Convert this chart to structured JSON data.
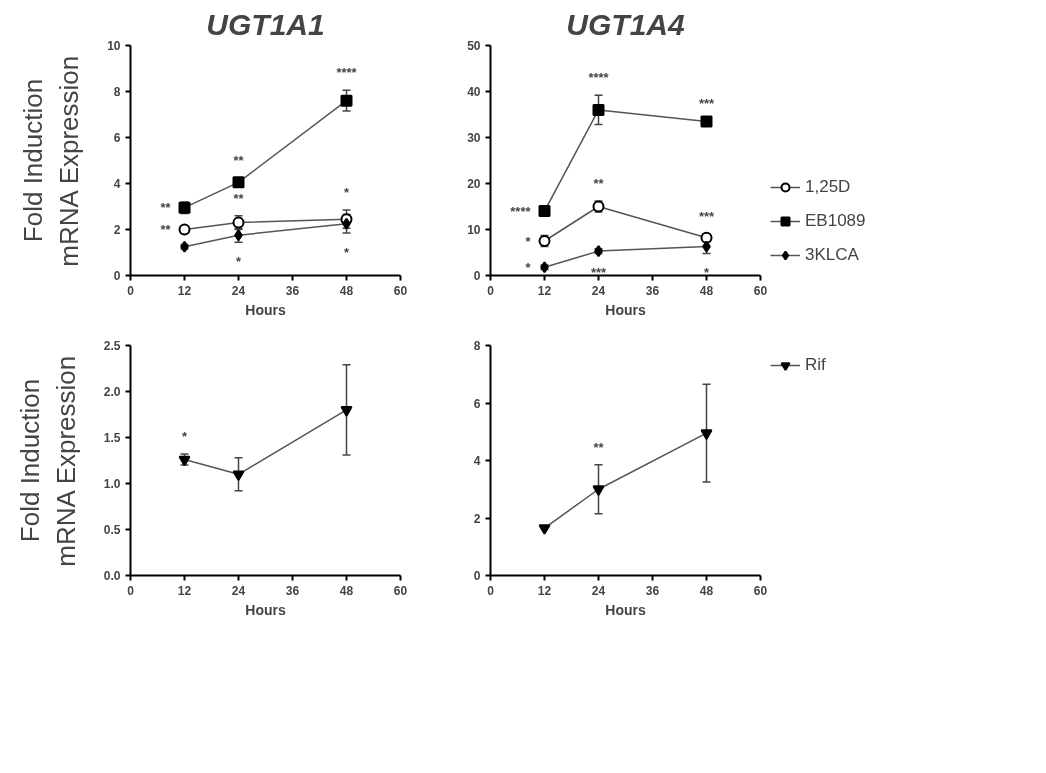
{
  "chart_data": [
    {
      "type": "line",
      "title": "UGT1A1",
      "xlabel": "Hours",
      "ylabel": "Fold Induction\nmRNA Expression",
      "x": [
        12,
        24,
        48
      ],
      "xlim": [
        0,
        60
      ],
      "xticks": [
        0,
        12,
        24,
        36,
        48,
        60
      ],
      "ylim": [
        0,
        10
      ],
      "yticks": [
        0,
        2,
        4,
        6,
        8,
        10
      ],
      "grid": false,
      "legend": false,
      "series": [
        {
          "color": "#000000",
          "marker": "circle",
          "values": [
            2.0,
            2.3,
            2.45
          ],
          "errors": [
            0.15,
            0.3,
            0.4
          ]
        },
        {
          "color": "#000000",
          "marker": "square",
          "values": [
            2.95,
            4.05,
            7.6
          ],
          "errors": [
            0.25,
            0.2,
            0.45
          ]
        },
        {
          "color": "#000000",
          "marker": "diamond",
          "values": [
            1.25,
            1.75,
            2.25
          ],
          "errors": [
            0.1,
            0.3,
            0.4
          ]
        }
      ],
      "annotations": [
        {
          "text": "**",
          "x": 12,
          "y": 2.95
        },
        {
          "text": "**",
          "x": 24,
          "y": 4.05
        },
        {
          "text": "****",
          "x": 48,
          "y": 7.6
        },
        {
          "text": "**",
          "x": 24,
          "y": 2.3
        },
        {
          "text": "*",
          "x": 48,
          "y": 2.45
        },
        {
          "text": "**",
          "x": 12,
          "y": 2.0
        },
        {
          "text": "*",
          "x": 24,
          "y": 1.75
        },
        {
          "text": "*",
          "x": 48,
          "y": 2.25
        }
      ]
    },
    {
      "type": "line",
      "title": "UGT1A4",
      "xlabel": "Hours",
      "x": [
        12,
        24,
        48
      ],
      "xlim": [
        0,
        60
      ],
      "xticks": [
        0,
        12,
        24,
        36,
        48,
        60
      ],
      "ylim": [
        0,
        50
      ],
      "yticks": [
        0,
        10,
        20,
        30,
        40,
        50
      ],
      "grid": false,
      "legend": "right",
      "series": [
        {
          "name": "1,25D",
          "color": "#000000",
          "marker": "circle",
          "values": [
            7.5,
            15,
            8.2
          ],
          "errors": [
            1.2,
            1.2,
            0.8
          ]
        },
        {
          "name": "EB1089",
          "color": "#000000",
          "marker": "square",
          "values": [
            14,
            36,
            33.5
          ],
          "errors": [
            null,
            3.2,
            null
          ]
        },
        {
          "name": "3KLCA",
          "color": "#000000",
          "marker": "diamond",
          "values": [
            1.8,
            5.3,
            6.3
          ],
          "errors": [
            0.5,
            0.5,
            1.5
          ]
        }
      ],
      "annotations": [
        {
          "text": "****",
          "x": 24,
          "y": 36
        },
        {
          "text": "***",
          "x": 48,
          "y": 33.5
        },
        {
          "text": "****",
          "x": 12,
          "y": 14
        },
        {
          "text": "*",
          "x": 12,
          "y": 7.5
        },
        {
          "text": "*",
          "x": 12,
          "y": 1.8
        },
        {
          "text": "**",
          "x": 24,
          "y": 15
        },
        {
          "text": "***",
          "x": 48,
          "y": 8.2
        },
        {
          "text": "***",
          "x": 24,
          "y": 5.3
        },
        {
          "text": "*",
          "x": 48,
          "y": 6.3
        }
      ]
    },
    {
      "type": "line",
      "xlabel": "Hours",
      "ylabel": "Fold Induction\nmRNA Expression",
      "x": [
        12,
        24,
        48
      ],
      "xlim": [
        0,
        60
      ],
      "xticks": [
        0,
        12,
        24,
        36,
        48,
        60
      ],
      "ylim": [
        0,
        2.5
      ],
      "yticks": [
        {
          "value": 0,
          "label": "0.0"
        },
        {
          "value": 0.5,
          "label": "0.5"
        },
        {
          "value": 1,
          "label": "1.0"
        },
        {
          "value": 1.5,
          "label": "1.5"
        },
        {
          "value": 2,
          "label": "2.0"
        },
        {
          "value": 2.5,
          "label": "2.5"
        }
      ],
      "grid": false,
      "legend": false,
      "series": [
        {
          "color": "#000000",
          "marker": "triangle",
          "values": [
            1.26,
            1.1,
            1.8
          ],
          "errors": [
            0.06,
            0.18,
            0.49
          ]
        }
      ],
      "annotations": [
        {
          "text": "*",
          "x": 12,
          "y": 1.26
        }
      ]
    },
    {
      "type": "line",
      "xlabel": "Hours",
      "x": [
        12,
        24,
        48
      ],
      "xlim": [
        0,
        60
      ],
      "xticks": [
        0,
        12,
        24,
        36,
        48,
        60
      ],
      "ylim": [
        0,
        8
      ],
      "yticks": [
        0,
        2,
        4,
        6,
        8
      ],
      "grid": false,
      "legend": "right",
      "series": [
        {
          "name": "Rif",
          "color": "#000000",
          "marker": "triangle",
          "values": [
            1.65,
            3.0,
            4.95
          ],
          "errors": [
            null,
            0.85,
            1.7
          ]
        }
      ],
      "annotations": [
        {
          "text": "**",
          "x": 24,
          "y": 3.0
        }
      ]
    }
  ]
}
